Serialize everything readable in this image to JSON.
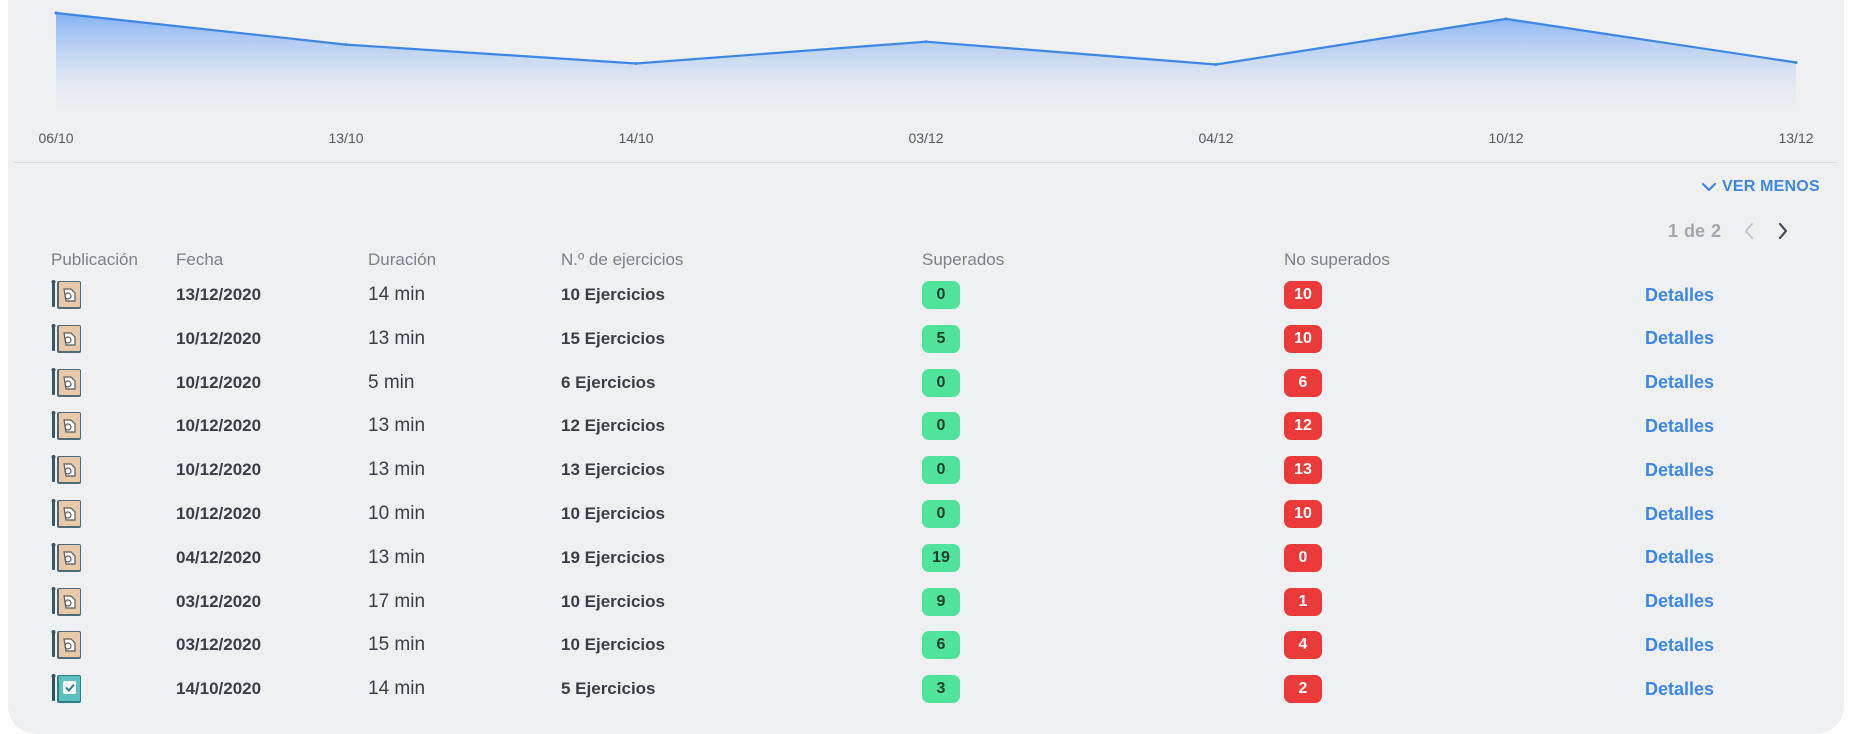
{
  "colors": {
    "card_bg": "#eff0f2",
    "line": "#3d87e6",
    "link": "#3d87e6",
    "badge_success": "#4fe39c",
    "badge_fail": "#ea3a3a"
  },
  "chart_data": {
    "type": "area",
    "categories": [
      "06/10",
      "13/10",
      "14/10",
      "03/12",
      "04/12",
      "10/12",
      "13/12"
    ],
    "values": [
      10,
      6.8,
      4.9,
      7.1,
      4.8,
      9.4,
      5
    ],
    "ylim": [
      0,
      10.5
    ],
    "grid": false
  },
  "controls": {
    "ver_menos": "VER MENOS"
  },
  "pagination": {
    "current": "1",
    "separator": "de",
    "total": "2"
  },
  "table": {
    "headers": [
      "Publicación",
      "Fecha",
      "Duración",
      "N.º de ejercicios",
      "Superados",
      "No superados"
    ],
    "details_label": "Detalles",
    "rows": [
      {
        "icon": "book-hand-icon",
        "date": "13/12/2020",
        "duration": "14 min",
        "exercises": "10 Ejercicios",
        "passed": "0",
        "failed": "10"
      },
      {
        "icon": "book-hand-icon",
        "date": "10/12/2020",
        "duration": "13 min",
        "exercises": "15 Ejercicios",
        "passed": "5",
        "failed": "10"
      },
      {
        "icon": "book-hand-icon",
        "date": "10/12/2020",
        "duration": "5 min",
        "exercises": "6 Ejercicios",
        "passed": "0",
        "failed": "6"
      },
      {
        "icon": "book-hand-icon",
        "date": "10/12/2020",
        "duration": "13 min",
        "exercises": "12 Ejercicios",
        "passed": "0",
        "failed": "12"
      },
      {
        "icon": "book-hand-icon",
        "date": "10/12/2020",
        "duration": "13 min",
        "exercises": "13 Ejercicios",
        "passed": "0",
        "failed": "13"
      },
      {
        "icon": "book-hand-icon",
        "date": "10/12/2020",
        "duration": "10 min",
        "exercises": "10 Ejercicios",
        "passed": "0",
        "failed": "10"
      },
      {
        "icon": "book-hand-icon",
        "date": "04/12/2020",
        "duration": "13 min",
        "exercises": "19 Ejercicios",
        "passed": "19",
        "failed": "0"
      },
      {
        "icon": "book-hand-icon",
        "date": "03/12/2020",
        "duration": "17 min",
        "exercises": "10 Ejercicios",
        "passed": "9",
        "failed": "1"
      },
      {
        "icon": "book-hand-icon",
        "date": "03/12/2020",
        "duration": "15 min",
        "exercises": "10 Ejercicios",
        "passed": "6",
        "failed": "4"
      },
      {
        "icon": "book-check-icon",
        "date": "14/10/2020",
        "duration": "14 min",
        "exercises": "5 Ejercicios",
        "passed": "3",
        "failed": "2"
      }
    ]
  }
}
